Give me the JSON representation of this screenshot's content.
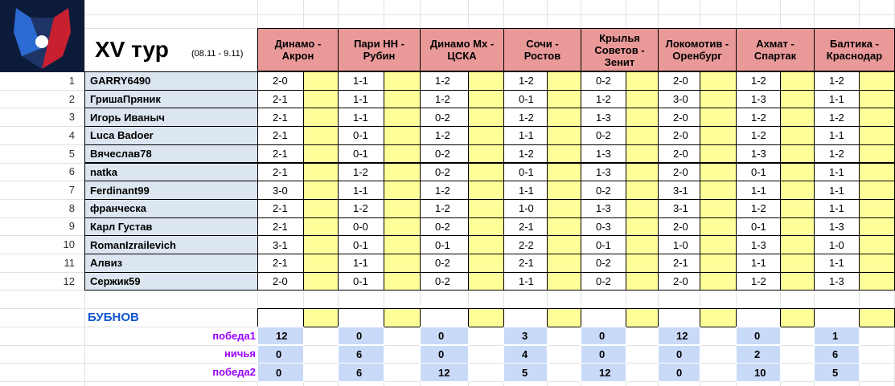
{
  "header": {
    "title": "XV тур",
    "dates": "(08.11 - 9.11)"
  },
  "matches": [
    "Динамо -\nАкрон",
    "Пари НН -\nРубин",
    "Динамо Мх -\nЦСКА",
    "Сочи -\nРостов",
    "Крылья\nСоветов -\nЗенит",
    "Локомотив -\nОренбург",
    "Ахмат -\nСпартак",
    "Балтика -\nКраснодар"
  ],
  "players": [
    {
      "num": 1,
      "name": "GARRY6490",
      "scores": [
        "2-0",
        "1-1",
        "1-2",
        "1-2",
        "0-2",
        "2-0",
        "1-2",
        "1-2"
      ]
    },
    {
      "num": 2,
      "name": "ГришаПряник",
      "scores": [
        "2-1",
        "1-1",
        "1-2",
        "0-1",
        "1-2",
        "3-0",
        "1-3",
        "1-1"
      ]
    },
    {
      "num": 3,
      "name": "Игорь Иваныч",
      "scores": [
        "2-1",
        "1-1",
        "0-2",
        "1-2",
        "1-3",
        "2-0",
        "1-2",
        "1-2"
      ]
    },
    {
      "num": 4,
      "name": "Luca Badoer",
      "scores": [
        "2-1",
        "0-1",
        "1-2",
        "1-1",
        "0-2",
        "2-0",
        "1-2",
        "1-1"
      ]
    },
    {
      "num": 5,
      "name": "Вячеслав78",
      "scores": [
        "2-1",
        "0-1",
        "0-2",
        "1-2",
        "1-3",
        "2-0",
        "1-3",
        "1-2"
      ]
    },
    {
      "num": 6,
      "name": "natka",
      "scores": [
        "2-1",
        "1-2",
        "0-2",
        "0-1",
        "1-3",
        "2-0",
        "0-1",
        "1-1"
      ]
    },
    {
      "num": 7,
      "name": "Ferdinant99",
      "scores": [
        "3-0",
        "1-1",
        "1-2",
        "1-1",
        "0-2",
        "3-1",
        "1-1",
        "1-1"
      ]
    },
    {
      "num": 8,
      "name": "франческа",
      "scores": [
        "2-1",
        "1-2",
        "1-2",
        "1-0",
        "1-3",
        "3-1",
        "1-2",
        "1-1"
      ]
    },
    {
      "num": 9,
      "name": "Карл Густав",
      "scores": [
        "2-1",
        "0-0",
        "0-2",
        "2-1",
        "0-3",
        "2-0",
        "0-1",
        "1-3"
      ]
    },
    {
      "num": 10,
      "name": "RomanIzrailevich",
      "scores": [
        "3-1",
        "0-1",
        "0-1",
        "2-2",
        "0-1",
        "1-0",
        "1-3",
        "1-0"
      ]
    },
    {
      "num": 11,
      "name": "Алвиз",
      "scores": [
        "2-1",
        "1-1",
        "0-2",
        "2-1",
        "0-2",
        "2-1",
        "1-1",
        "1-1"
      ]
    },
    {
      "num": 12,
      "name": "Сержик59",
      "scores": [
        "2-0",
        "0-1",
        "0-2",
        "1-1",
        "0-2",
        "2-0",
        "1-2",
        "1-3"
      ]
    }
  ],
  "bubnov": "БУБНОВ",
  "stats": [
    {
      "label": "победа1",
      "values": [
        12,
        0,
        0,
        3,
        0,
        12,
        0,
        1
      ]
    },
    {
      "label": "ничья",
      "values": [
        0,
        6,
        0,
        4,
        0,
        0,
        2,
        6
      ]
    },
    {
      "label": "победа2",
      "values": [
        0,
        6,
        12,
        5,
        12,
        0,
        10,
        5
      ]
    }
  ]
}
